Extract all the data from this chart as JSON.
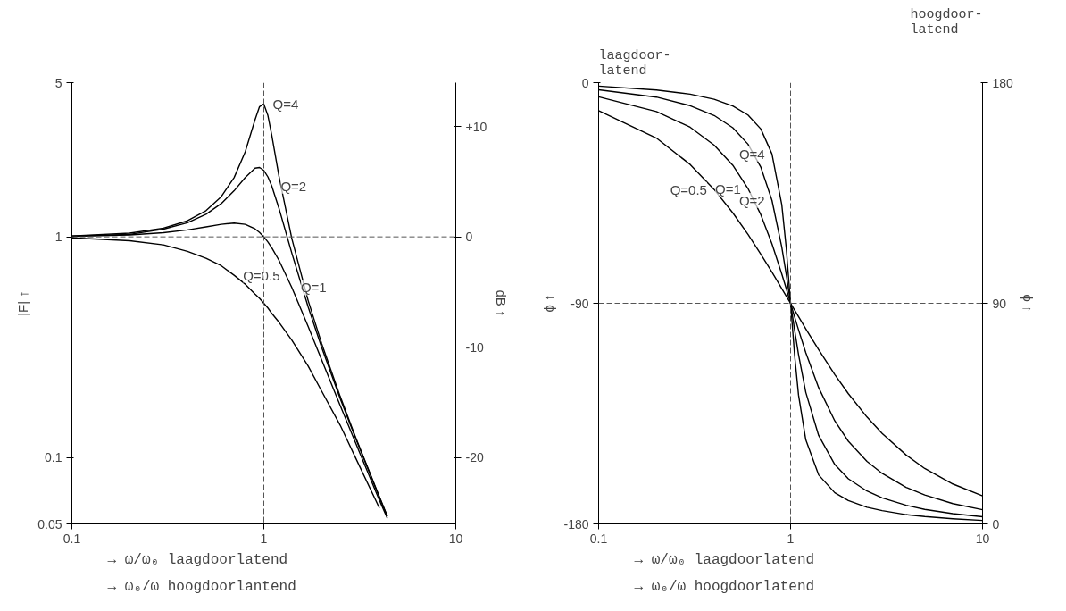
{
  "chart_data": [
    {
      "type": "line",
      "xlabel": "→ ω/ω₀  laagdoorlatend\n→ ω₀/ω  hoogdoorlantend",
      "ylabel": "|F| ↑",
      "y2label": "dB ↑",
      "log": "xy",
      "grid": false,
      "x": [
        0.1,
        0.2,
        0.3,
        0.4,
        0.5,
        0.6,
        0.7,
        0.8,
        0.9,
        0.95,
        1,
        1.05,
        1.1,
        1.2,
        1.4,
        1.7,
        2,
        2.5,
        3,
        4,
        4.4
      ],
      "series": [
        {
          "color": "#000000",
          "values": [
            1.01,
            1.04,
            1.095,
            1.182,
            1.315,
            1.521,
            1.855,
            2.428,
            3.396,
            3.895,
            4,
            3.549,
            2.89,
            1.878,
            0.979,
            0.516,
            0.329,
            0.189,
            0.124,
            0.0665,
            0.0542
          ]
        },
        {
          "color": "#000000",
          "values": [
            1.009,
            1.026,
            1.084,
            1.158,
            1.265,
            1.415,
            1.617,
            1.858,
            2.047,
            2.062,
            2,
            1.87,
            1.699,
            1.344,
            0.842,
            0.483,
            0.316,
            0.185,
            0.123,
            0.066,
            0.054
          ]
        },
        {
          "color": "#000000",
          "values": [
            1.005,
            1.02,
            1.044,
            1.075,
            1.109,
            1.14,
            1.155,
            1.14,
            1.087,
            1.047,
            1,
            0.948,
            0.893,
            0.782,
            0.589,
            0.393,
            0.277,
            0.172,
            0.117,
            0.064,
            0.053
          ]
        },
        {
          "color": "#000000",
          "values": [
            0.99,
            0.96,
            0.92,
            0.86,
            0.8,
            0.74,
            0.67,
            0.61,
            0.55,
            0.526,
            0.5,
            0.476,
            0.45,
            0.41,
            0.34,
            0.26,
            0.2,
            0.14,
            0.1,
            0.059,
            null
          ]
        }
      ],
      "xlim": [
        0.1,
        10
      ],
      "ylim": [
        0.05,
        5
      ],
      "xticks": [
        0.1,
        1,
        10
      ],
      "yticks": [
        0.05,
        0.1,
        1,
        5
      ],
      "y2lim": [
        -26.02,
        13.98
      ],
      "y2ticks": [
        {
          "value": 10,
          "label": "+10"
        },
        0,
        -10,
        -20
      ],
      "ref_lines": [
        {
          "axis": "x",
          "value": 1,
          "line_style": "dashed"
        },
        {
          "axis": "y",
          "value": 1,
          "line_style": "dashed"
        }
      ],
      "annotations": [
        {
          "text": "Q=4",
          "x": 1,
          "y": 4
        },
        {
          "text": "Q=2",
          "x": 1.1,
          "y": 1.699
        },
        {
          "text": "Q=1",
          "x": 1.4,
          "y": 0.589
        },
        {
          "text": "Q=0.5",
          "x": 0.7,
          "y": 0.67
        }
      ]
    },
    {
      "type": "line",
      "xlabel": "→ ω/ω₀ laagdoorlatend\n→ ω₀/ω hoogdoorlatend",
      "ylabel": "ϕ ↑",
      "y2label": "ϕ ↑",
      "log": "x",
      "grid": false,
      "x": [
        0.1,
        0.2,
        0.3,
        0.4,
        0.5,
        0.6,
        0.7,
        0.8,
        0.9,
        0.95,
        1,
        1.05,
        1.1,
        1.2,
        1.4,
        1.7,
        2,
        2.5,
        3,
        4,
        5,
        7,
        10
      ],
      "series": [
        {
          "color": "#000000",
          "values": [
            -1.4,
            -3,
            -4.7,
            -6.8,
            -9.5,
            -13.2,
            -18.9,
            -29.1,
            -49.8,
            -67.7,
            -90,
            -111.3,
            -127.4,
            -145.7,
            -160,
            -167.3,
            -170.5,
            -173.2,
            -174.6,
            -176.2,
            -177,
            -177.9,
            -178.6
          ]
        },
        {
          "color": "#000000",
          "values": [
            -2.9,
            -5.9,
            -9.4,
            -13.4,
            -18.4,
            -25.1,
            -34.5,
            -48,
            -67.1,
            -78.4,
            -90,
            -101,
            -110.9,
            -126.3,
            -143.9,
            -155.8,
            -161.6,
            -166.6,
            -169.4,
            -172.4,
            -174.1,
            -175.8,
            -177.1
          ]
        },
        {
          "color": "#000000",
          "values": [
            -5.8,
            -11.8,
            -18.2,
            -25.5,
            -33.7,
            -43.2,
            -53.9,
            -65.8,
            -78.1,
            -84.1,
            -90,
            -95.6,
            -100.8,
            -110.1,
            -124.4,
            -138,
            -146.3,
            -154.5,
            -159.4,
            -165.1,
            -168.2,
            -171.7,
            -174.2
          ]
        },
        {
          "color": "#000000",
          "values": [
            -11.4,
            -22.6,
            -33.4,
            -43.6,
            -53.1,
            -61.9,
            -70,
            -77.3,
            -84,
            -87.1,
            -90,
            -92.8,
            -95.4,
            -100.4,
            -108.9,
            -119.1,
            -126.9,
            -136.4,
            -143.1,
            -151.9,
            -157.4,
            -163.7,
            -168.6
          ]
        }
      ],
      "xlim": [
        0.1,
        10
      ],
      "ylim": [
        -180,
        0
      ],
      "xticks": [
        0.1,
        1,
        10
      ],
      "yticks": [
        -180,
        -90,
        0
      ],
      "y2lim": [
        0,
        180
      ],
      "y2ticks": [
        0,
        90,
        180
      ],
      "ref_lines": [
        {
          "axis": "x",
          "value": 1,
          "line_style": "dashed"
        },
        {
          "axis": "y",
          "value": -90,
          "line_style": "dashed"
        }
      ],
      "annotations": [
        "laagdoor-\nlatend",
        "hoogdoor-\nlatend",
        {
          "text": "Q=4",
          "x": 0.8,
          "y": -29.1
        },
        {
          "text": "Q=2",
          "x": 0.8,
          "y": -48
        },
        {
          "text": "Q=1",
          "x": 0.6,
          "y": -43.2
        },
        {
          "text": "Q=0.5",
          "x": 0.4,
          "y": -43.6
        }
      ]
    }
  ]
}
